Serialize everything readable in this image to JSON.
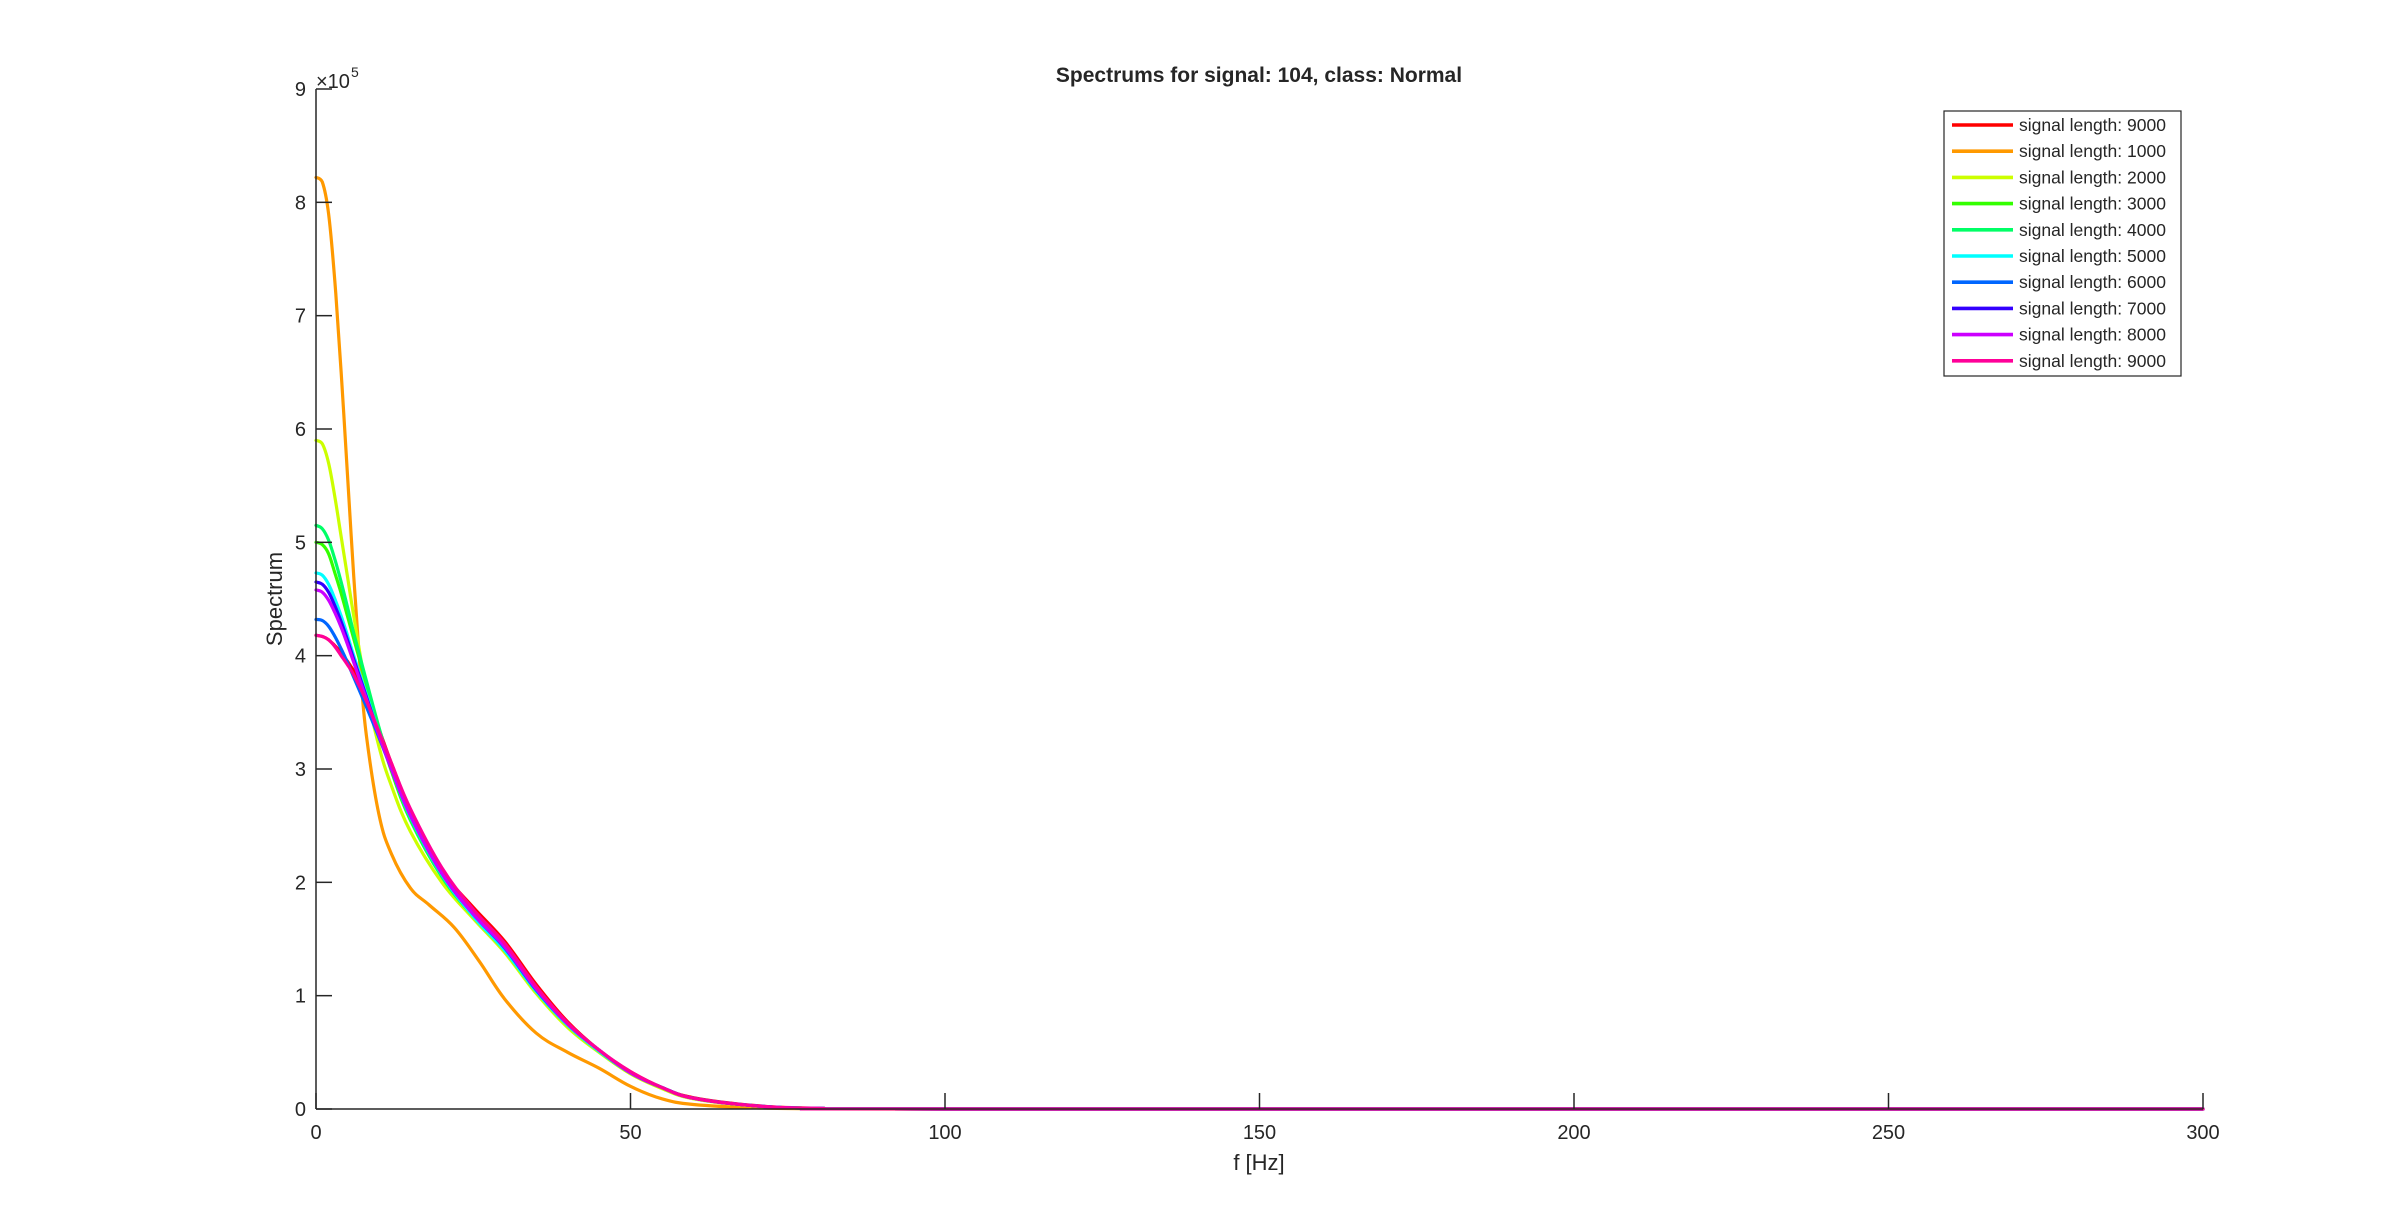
{
  "chart_data": {
    "type": "line",
    "title": "Spectrums for signal: 104, class: Normal",
    "xlabel": "f [Hz]",
    "ylabel": "Spectrum",
    "y_exponent_label": "×10",
    "y_exponent_power": "5",
    "xlim": [
      0,
      300
    ],
    "ylim": [
      0,
      900000
    ],
    "xticks": [
      0,
      50,
      100,
      150,
      200,
      250,
      300
    ],
    "yticks": [
      0,
      1,
      2,
      3,
      4,
      5,
      6,
      7,
      8,
      9
    ],
    "grid": false,
    "legend_position": "top-right",
    "series": [
      {
        "name": "signal length: 9000",
        "color": "#ff0000",
        "x": [
          0,
          2,
          5,
          8,
          12,
          16,
          20,
          25,
          30,
          35,
          40,
          45,
          50,
          55,
          60,
          70,
          80,
          100,
          300
        ],
        "y": [
          418000,
          414000,
          395000,
          365000,
          305000,
          250000,
          210000,
          178000,
          148000,
          110000,
          77000,
          52000,
          33000,
          19000,
          10000,
          3000,
          700,
          0,
          0
        ]
      },
      {
        "name": "signal length: 1000",
        "color": "#ff9900",
        "x": [
          0,
          1,
          2,
          3,
          4,
          5,
          6,
          7,
          8,
          10,
          12,
          15,
          18,
          22,
          26,
          30,
          35,
          40,
          45,
          50,
          55,
          60,
          70,
          80,
          100,
          300
        ],
        "y": [
          822000,
          818000,
          790000,
          730000,
          650000,
          560000,
          470000,
          390000,
          330000,
          260000,
          225000,
          195000,
          180000,
          160000,
          130000,
          97000,
          67000,
          50000,
          36000,
          20000,
          9000,
          4000,
          1000,
          200,
          0,
          0
        ]
      },
      {
        "name": "signal length: 2000",
        "color": "#ccff00",
        "x": [
          0,
          1,
          2,
          3,
          4,
          5,
          6,
          8,
          10,
          12,
          15,
          20,
          25,
          30,
          35,
          40,
          45,
          50,
          55,
          60,
          70,
          80,
          100,
          300
        ],
        "y": [
          590000,
          587000,
          570000,
          540000,
          505000,
          470000,
          435000,
          370000,
          320000,
          285000,
          245000,
          200000,
          168000,
          138000,
          102000,
          72000,
          50000,
          31000,
          18000,
          9000,
          2500,
          600,
          0,
          0
        ]
      },
      {
        "name": "signal length: 3000",
        "color": "#33ff00",
        "x": [
          0,
          1,
          2,
          3,
          4,
          5,
          6,
          8,
          10,
          12,
          15,
          20,
          25,
          30,
          35,
          40,
          45,
          50,
          55,
          60,
          70,
          80,
          100,
          300
        ],
        "y": [
          500000,
          498000,
          490000,
          473000,
          455000,
          435000,
          415000,
          375000,
          335000,
          298000,
          255000,
          205000,
          170000,
          140000,
          104000,
          74000,
          51000,
          32000,
          19000,
          9500,
          2700,
          600,
          0,
          0
        ]
      },
      {
        "name": "signal length: 4000",
        "color": "#00ff66",
        "x": [
          0,
          1,
          2,
          3,
          4,
          5,
          6,
          8,
          10,
          12,
          15,
          20,
          25,
          30,
          35,
          40,
          45,
          50,
          55,
          60,
          70,
          80,
          100,
          300
        ],
        "y": [
          515000,
          512000,
          502000,
          485000,
          465000,
          443000,
          420000,
          378000,
          337000,
          300000,
          256000,
          205000,
          170000,
          140000,
          104000,
          74000,
          51000,
          32000,
          19000,
          9500,
          2700,
          600,
          0,
          0
        ]
      },
      {
        "name": "signal length: 5000",
        "color": "#00ffff",
        "x": [
          0,
          1,
          2,
          3,
          4,
          5,
          6,
          8,
          10,
          12,
          15,
          20,
          25,
          30,
          35,
          40,
          45,
          50,
          55,
          60,
          70,
          80,
          100,
          300
        ],
        "y": [
          473000,
          471000,
          463000,
          450000,
          435000,
          418000,
          400000,
          366000,
          332000,
          300000,
          258000,
          207000,
          170000,
          140000,
          104000,
          74000,
          51000,
          32000,
          19000,
          9500,
          2700,
          600,
          0,
          0
        ]
      },
      {
        "name": "signal length: 6000",
        "color": "#0066ff",
        "x": [
          0,
          1,
          2,
          3,
          4,
          5,
          6,
          8,
          10,
          12,
          15,
          20,
          25,
          30,
          35,
          40,
          45,
          50,
          55,
          60,
          70,
          80,
          100,
          300
        ],
        "y": [
          432000,
          431000,
          426000,
          417000,
          406000,
          394000,
          381000,
          355000,
          328000,
          300000,
          260000,
          208000,
          172000,
          142000,
          105000,
          75000,
          52000,
          32000,
          19000,
          9500,
          2700,
          600,
          0,
          0
        ]
      },
      {
        "name": "signal length: 7000",
        "color": "#3300ff",
        "x": [
          0,
          1,
          2,
          3,
          4,
          5,
          6,
          8,
          10,
          12,
          15,
          20,
          25,
          30,
          35,
          40,
          45,
          50,
          55,
          60,
          70,
          80,
          100,
          300
        ],
        "y": [
          465000,
          463000,
          456000,
          444000,
          430000,
          414000,
          397000,
          364000,
          331000,
          300000,
          259000,
          208000,
          172000,
          143000,
          106000,
          75000,
          52000,
          32000,
          19000,
          9500,
          2700,
          600,
          0,
          0
        ]
      },
      {
        "name": "signal length: 8000",
        "color": "#cc00ff",
        "x": [
          0,
          1,
          2,
          3,
          4,
          5,
          6,
          8,
          10,
          12,
          15,
          20,
          25,
          30,
          35,
          40,
          45,
          50,
          55,
          60,
          70,
          80,
          100,
          300
        ],
        "y": [
          458000,
          456000,
          449000,
          438000,
          425000,
          410000,
          394000,
          362000,
          330000,
          300000,
          259000,
          208000,
          172000,
          143000,
          106000,
          75000,
          52000,
          32000,
          19000,
          9500,
          2700,
          600,
          0,
          0
        ]
      },
      {
        "name": "signal length: 9000",
        "color": "#ff0099",
        "x": [
          0,
          1,
          2,
          3,
          4,
          5,
          6,
          8,
          10,
          12,
          15,
          20,
          25,
          30,
          35,
          40,
          45,
          50,
          55,
          60,
          70,
          80,
          100,
          300
        ],
        "y": [
          418000,
          417000,
          414000,
          408000,
          400000,
          392000,
          383000,
          360000,
          333000,
          305000,
          265000,
          213000,
          176000,
          146000,
          108000,
          76000,
          52000,
          33000,
          19000,
          9500,
          2700,
          600,
          0,
          0
        ]
      }
    ]
  }
}
